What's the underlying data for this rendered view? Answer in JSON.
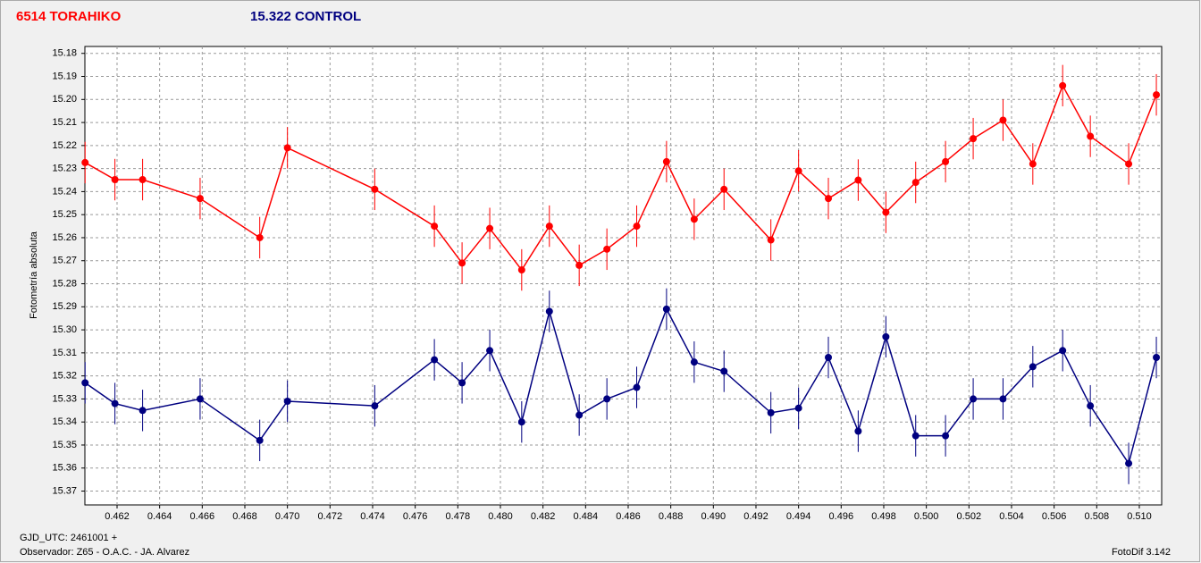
{
  "chart_data": {
    "type": "line",
    "y_label": "Fotometría absoluta",
    "footer_left_1": "GJD_UTC: 2461001 +",
    "footer_left_2": "Observador: Z65 - O.A.C. - JA. Alvarez",
    "footer_right": "FotoDif 3.142",
    "xlim": [
      0.46049,
      0.51105
    ],
    "ylim": [
      15.177,
      15.376
    ],
    "y_inverted": true,
    "grid": true,
    "xticks": [
      0.462,
      0.464,
      0.466,
      0.468,
      {
        "value": 0.47,
        "label": "0.470"
      },
      0.472,
      0.474,
      0.476,
      0.478,
      {
        "value": 0.48,
        "label": "0.480"
      },
      0.482,
      0.484,
      0.486,
      0.488,
      {
        "value": 0.49,
        "label": "0.490"
      },
      0.492,
      0.494,
      0.496,
      0.498,
      {
        "value": 0.5,
        "label": "0.500"
      },
      0.502,
      0.504,
      0.506,
      0.508,
      {
        "value": 0.51,
        "label": "0.510"
      }
    ],
    "yticks": [
      15.18,
      15.19,
      {
        "value": 15.2,
        "label": "15.20"
      },
      15.21,
      15.22,
      15.23,
      15.24,
      15.25,
      15.26,
      15.27,
      15.28,
      15.29,
      {
        "value": 15.3,
        "label": "15.30"
      },
      15.31,
      15.32,
      15.33,
      15.34,
      15.35,
      15.36,
      15.37
    ],
    "x": [
      0.4605,
      0.4619,
      0.4632,
      0.4659,
      0.4687,
      0.47,
      0.4741,
      0.4769,
      0.4782,
      0.4795,
      0.481,
      0.4823,
      0.4837,
      0.485,
      0.4864,
      0.4878,
      0.4891,
      0.4905,
      0.4927,
      0.494,
      0.4954,
      0.4968,
      0.4981,
      0.4995,
      0.5009,
      0.5022,
      0.5036,
      0.505,
      0.5064,
      0.5077,
      0.5095,
      0.5108
    ],
    "series": [
      {
        "name": "6514 TORAHIKO",
        "color": "#ff0000",
        "error": 0.009,
        "values": [
          15.2274,
          15.2348,
          15.2348,
          15.243,
          15.26,
          15.221,
          15.239,
          15.255,
          15.271,
          15.256,
          15.274,
          15.255,
          15.272,
          15.265,
          15.255,
          15.227,
          15.252,
          15.239,
          15.261,
          15.231,
          15.243,
          15.235,
          15.249,
          15.236,
          15.227,
          15.217,
          15.209,
          15.228,
          15.194,
          15.216,
          15.228,
          15.198
        ]
      },
      {
        "name": "15.322 CONTROL",
        "color": "#000080",
        "error": 0.009,
        "values": [
          15.323,
          15.332,
          15.335,
          15.33,
          15.348,
          15.331,
          15.333,
          15.313,
          15.323,
          15.309,
          15.34,
          15.292,
          15.337,
          15.33,
          15.325,
          15.291,
          15.314,
          15.318,
          15.336,
          15.334,
          15.312,
          15.344,
          15.303,
          15.346,
          15.346,
          15.33,
          15.33,
          15.316,
          15.309,
          15.333,
          15.358,
          15.312
        ]
      }
    ]
  }
}
